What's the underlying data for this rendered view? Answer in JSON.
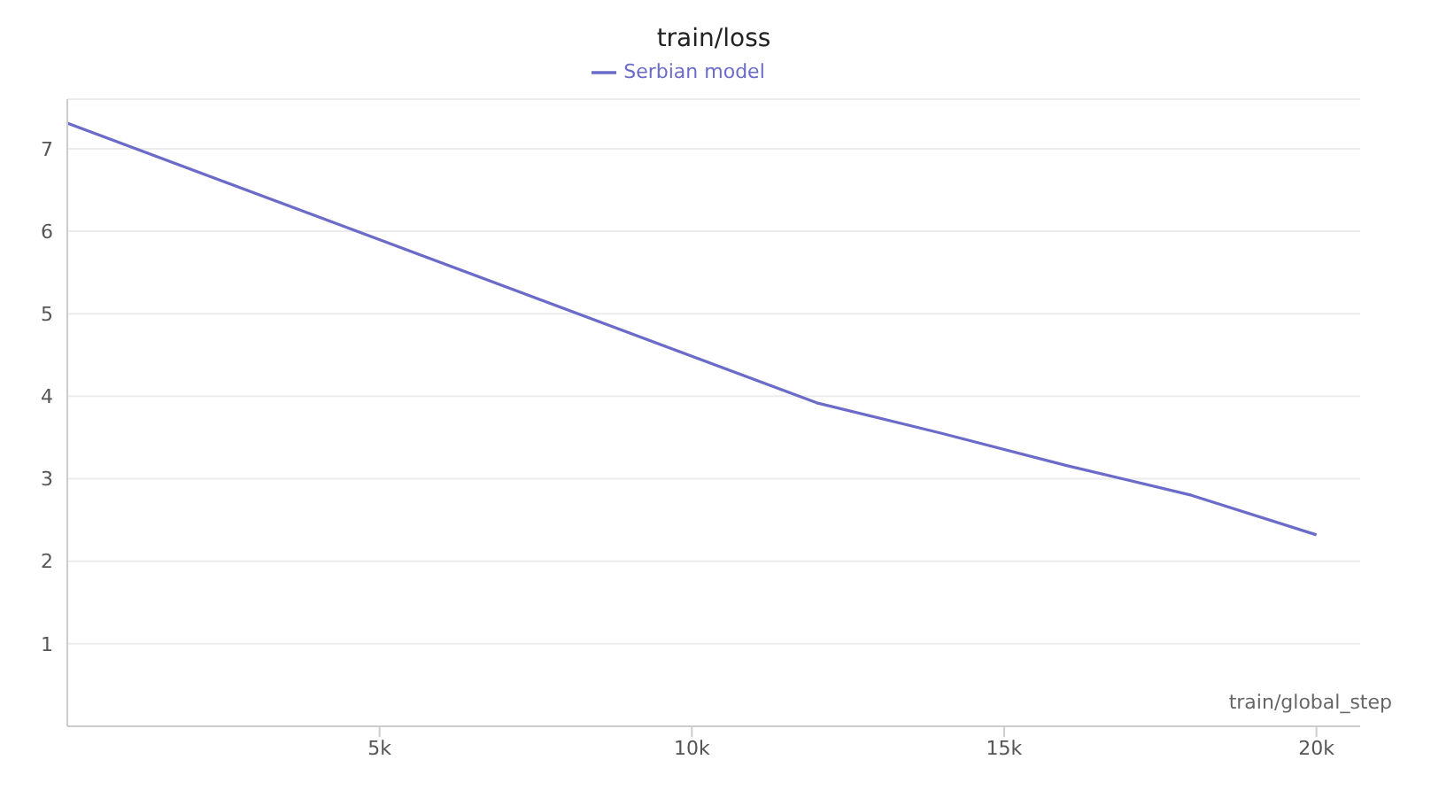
{
  "chart_data": {
    "type": "line",
    "title": "train/loss",
    "xlabel": "train/global_step",
    "x": [
      0,
      12000,
      14000,
      16000,
      18000,
      20000
    ],
    "series": [
      {
        "name": "Serbian model",
        "color": "#6b6bc9",
        "values": [
          7.31,
          3.92,
          3.55,
          3.16,
          2.8,
          2.32
        ]
      }
    ],
    "xlim": [
      0,
      20700
    ],
    "xticks": [
      {
        "value": 5000,
        "label": "5k"
      },
      {
        "value": 10000,
        "label": "10k"
      },
      {
        "value": 15000,
        "label": "15k"
      },
      {
        "value": 20000,
        "label": "20k"
      }
    ],
    "ylim": [
      0,
      7.6
    ],
    "yticks": [
      1,
      2,
      3,
      4,
      5,
      6,
      7
    ],
    "grid": "y",
    "legend": "top",
    "marker": "none",
    "line_style": "solid"
  }
}
